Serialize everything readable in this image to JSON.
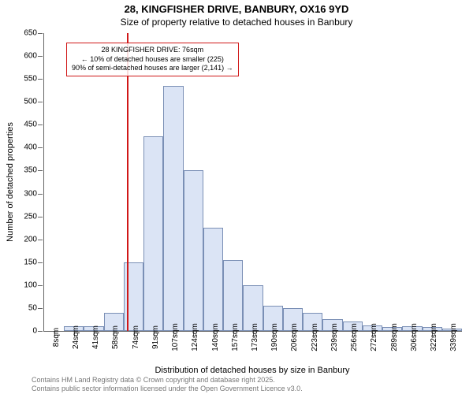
{
  "title_main": "28, KINGFISHER DRIVE, BANBURY, OX16 9YD",
  "title_sub": "Size of property relative to detached houses in Banbury",
  "ylabel": "Number of detached properties",
  "xlabel": "Distribution of detached houses by size in Banbury",
  "footer_line1": "Contains HM Land Registry data © Crown copyright and database right 2025.",
  "footer_line2": "Contains public sector information licensed under the Open Government Licence v3.0.",
  "chart": {
    "type": "histogram",
    "ylim": [
      0,
      650
    ],
    "ytick_step": 50,
    "yticks": [
      0,
      50,
      100,
      150,
      200,
      250,
      300,
      350,
      400,
      450,
      500,
      550,
      600,
      650
    ],
    "xtick_labels": [
      "8sqm",
      "24sqm",
      "41sqm",
      "58sqm",
      "74sqm",
      "91sqm",
      "107sqm",
      "124sqm",
      "140sqm",
      "157sqm",
      "173sqm",
      "190sqm",
      "206sqm",
      "223sqm",
      "239sqm",
      "256sqm",
      "272sqm",
      "289sqm",
      "306sqm",
      "322sqm",
      "339sqm"
    ],
    "bar_values": [
      0,
      10,
      10,
      40,
      150,
      425,
      535,
      350,
      225,
      155,
      100,
      55,
      50,
      40,
      25,
      20,
      12,
      8,
      10,
      8,
      6
    ],
    "bar_color": "#dbe4f5",
    "bar_border": "#7a8fb5",
    "background_color": "#ffffff",
    "marker_x_index": 4,
    "marker_color": "#d01818",
    "annotation_line1": "28 KINGFISHER DRIVE: 76sqm",
    "annotation_line2": "← 10% of detached houses are smaller (225)",
    "annotation_line3": "90% of semi-detached houses are larger (2,141) →"
  }
}
